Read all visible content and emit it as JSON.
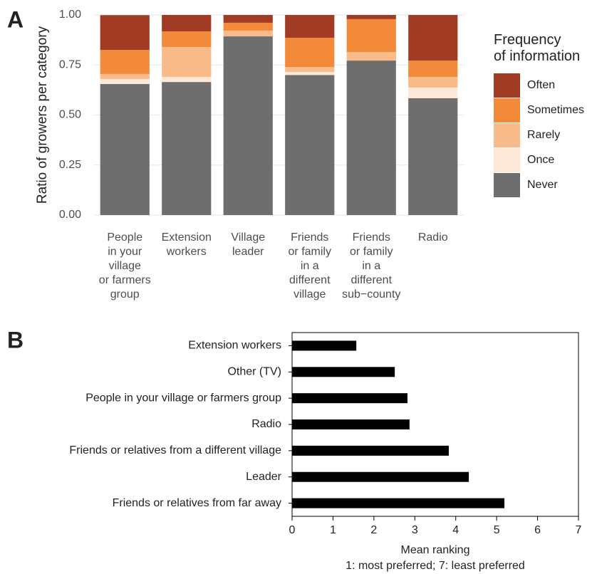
{
  "chart_data": [
    {
      "type": "bar",
      "panel_label": "A",
      "ylabel": "Ratio of growers per category",
      "categories": [
        "People\nin your\nvillage\nor farmers\ngroup",
        "Extension\nworkers",
        "Village\nleader",
        "Friends\nor family\nin a\ndifferent\nvillage",
        "Friends\nor family\nin a\ndifferent\nsub−county",
        "Radio"
      ],
      "legend_title": "Frequency\nof information",
      "series": [
        {
          "name": "Often",
          "color": "#a23b24",
          "values": [
            0.174,
            0.082,
            0.039,
            0.114,
            0.021,
            0.228
          ]
        },
        {
          "name": "Sometimes",
          "color": "#f28a3a",
          "values": [
            0.12,
            0.078,
            0.039,
            0.146,
            0.164,
            0.082
          ]
        },
        {
          "name": "Rarely",
          "color": "#f9bb8a",
          "values": [
            0.025,
            0.15,
            0.029,
            0.025,
            0.043,
            0.053
          ]
        },
        {
          "name": "Once",
          "color": "#fde8d8",
          "values": [
            0.025,
            0.025,
            0,
            0.015,
            0,
            0.053
          ]
        },
        {
          "name": "Never",
          "color": "#6e6e6e",
          "values": [
            0.655,
            0.665,
            0.893,
            0.7,
            0.772,
            0.584
          ]
        }
      ],
      "ylim": [
        0,
        1
      ],
      "yticks": [
        {
          "value": 0,
          "label": "0.00"
        },
        {
          "value": 0.25,
          "label": "0.25"
        },
        {
          "value": 0.5,
          "label": "0.50"
        },
        {
          "value": 0.75,
          "label": "0.75"
        },
        {
          "value": 1,
          "label": "1.00"
        }
      ],
      "grid": true,
      "stacked": true
    },
    {
      "type": "barh",
      "panel_label": "B",
      "categories": [
        "Extension workers",
        "Other (TV)",
        "People in your village or farmers group",
        "Radio",
        "Friends or relatives from a different village",
        "Leader",
        "Friends or relatives from far away"
      ],
      "values": [
        1.57,
        2.51,
        2.82,
        2.87,
        3.83,
        4.32,
        5.19
      ],
      "color": "#000000",
      "xlim": [
        0,
        7
      ],
      "xticks": [
        0,
        1,
        2,
        3,
        4,
        5,
        6,
        7
      ],
      "xlabel": "Mean ranking",
      "xlabel_note": "1: most preferred; 7: least preferred",
      "grid": false
    }
  ]
}
